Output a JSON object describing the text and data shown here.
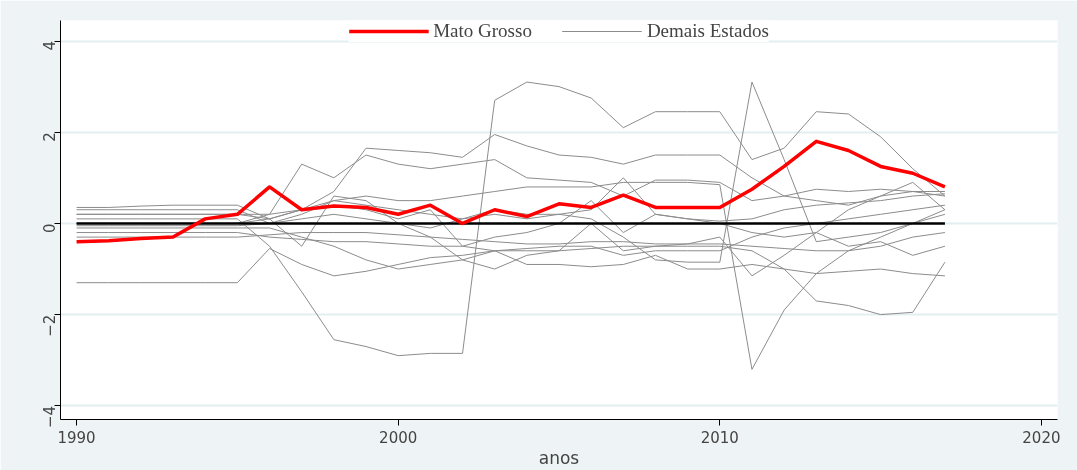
{
  "chart_data": {
    "type": "line",
    "xlabel": "anos",
    "x": [
      1990,
      1991,
      1992,
      1993,
      1994,
      1995,
      1996,
      1997,
      1998,
      1999,
      2000,
      2001,
      2002,
      2003,
      2004,
      2005,
      2006,
      2007,
      2008,
      2009,
      2010,
      2011,
      2012,
      2013,
      2014,
      2015,
      2016,
      2017
    ],
    "xlim": [
      1989.5,
      2020.5
    ],
    "xticks": [
      1990,
      2000,
      2010,
      2020
    ],
    "ylim": [
      -4.3,
      4.45
    ],
    "yticks": [
      -4,
      -2,
      0,
      2,
      4
    ],
    "grid": "y",
    "legend": "top",
    "series": [
      {
        "name": "Mato Grosso",
        "color": "#ff0000",
        "values": [
          -0.4,
          -0.38,
          -0.33,
          -0.3,
          0.1,
          0.2,
          0.8,
          0.3,
          0.38,
          0.35,
          0.2,
          0.4,
          0.0,
          0.3,
          0.15,
          0.43,
          0.35,
          0.62,
          0.35,
          0.35,
          0.35,
          0.75,
          1.25,
          1.8,
          1.6,
          1.25,
          1.1,
          0.8
        ]
      },
      {
        "color": "#000000",
        "values": [
          0,
          0,
          0,
          0,
          0,
          0,
          0,
          0,
          0,
          0,
          0,
          0,
          0,
          0,
          0,
          0,
          0,
          0,
          0,
          0,
          0,
          0,
          0,
          0,
          0,
          0,
          0,
          0
        ]
      },
      {
        "name": "Demais Estados",
        "color": "#8c8c8c",
        "values": [
          -1.3,
          -1.3,
          -1.3,
          -1.3,
          -1.3,
          -1.3,
          -0.55,
          -0.9,
          -1.15,
          -1.05,
          -0.9,
          -0.75,
          -0.7,
          -0.6,
          -0.55,
          -0.5,
          -0.5,
          -0.7,
          -0.6,
          -0.6,
          -0.6,
          -0.3,
          -0.1,
          0.0,
          0.1,
          0.2,
          0.3,
          0.4
        ]
      },
      {
        "color": "#8c8c8c",
        "values": [
          0.1,
          0.1,
          0.1,
          0.1,
          0.1,
          0.1,
          -0.5,
          -1.5,
          -2.55,
          -2.7,
          -2.9,
          -2.85,
          -2.85,
          2.7,
          3.1,
          3.0,
          2.75,
          2.1,
          2.45,
          2.45,
          2.45,
          1.4,
          1.65,
          2.45,
          2.4,
          1.9,
          1.2,
          0.6
        ]
      },
      {
        "color": "#8c8c8c",
        "values": [
          0.3,
          0.3,
          0.3,
          0.3,
          0.3,
          0.3,
          0.0,
          0.2,
          0.5,
          0.4,
          0.3,
          0.2,
          0.1,
          0.3,
          0.2,
          0.2,
          0.1,
          -0.3,
          -0.8,
          -0.85,
          -0.85,
          3.1,
          1.4,
          -0.4,
          -0.3,
          -0.2,
          0.0,
          0.2
        ]
      },
      {
        "color": "#8c8c8c",
        "values": [
          0.2,
          0.2,
          0.2,
          0.2,
          0.2,
          0.2,
          0.1,
          0.3,
          0.5,
          0.6,
          0.5,
          0.5,
          0.6,
          0.7,
          0.8,
          0.8,
          0.8,
          0.9,
          0.9,
          0.9,
          0.85,
          -3.2,
          -1.9,
          -1.1,
          -0.6,
          -0.3,
          0.0,
          0.3
        ]
      },
      {
        "color": "#8c8c8c",
        "values": [
          0.35,
          0.35,
          0.38,
          0.4,
          0.4,
          0.4,
          0.1,
          0.3,
          0.7,
          1.65,
          1.6,
          1.55,
          1.45,
          1.95,
          1.7,
          1.5,
          1.45,
          1.3,
          1.5,
          1.5,
          1.5,
          1.0,
          0.6,
          0.5,
          0.4,
          0.6,
          0.7,
          0.6
        ]
      },
      {
        "color": "#8c8c8c",
        "values": [
          0.0,
          0.0,
          0.0,
          0.0,
          0.0,
          0.0,
          0.2,
          1.3,
          1.0,
          1.5,
          1.3,
          1.2,
          1.3,
          1.4,
          1.0,
          0.95,
          0.9,
          0.6,
          0.95,
          0.95,
          0.9,
          0.5,
          0.6,
          0.75,
          0.7,
          0.75,
          0.7,
          0.7
        ]
      },
      {
        "color": "#8c8c8c",
        "values": [
          -0.2,
          -0.2,
          -0.2,
          -0.2,
          -0.2,
          -0.2,
          -0.3,
          -0.35,
          -0.4,
          -0.4,
          -0.45,
          -0.5,
          -0.5,
          -0.6,
          -0.6,
          -0.6,
          -0.55,
          -0.5,
          -0.5,
          -0.5,
          -0.5,
          -0.6,
          -1.0,
          -1.7,
          -1.8,
          -2.0,
          -1.95,
          -0.85
        ]
      },
      {
        "color": "#8c8c8c",
        "values": [
          -0.1,
          -0.1,
          -0.1,
          -0.1,
          -0.1,
          -0.1,
          -0.1,
          -0.3,
          -0.5,
          -0.8,
          -1.0,
          -0.9,
          -0.8,
          -0.6,
          -0.9,
          -0.9,
          -0.95,
          -0.9,
          -0.7,
          -1.0,
          -1.0,
          -0.9,
          -1.0,
          -1.1,
          -1.05,
          -1.0,
          -1.1,
          -1.15
        ]
      },
      {
        "color": "#8c8c8c",
        "values": [
          0.0,
          0.0,
          0.0,
          0.0,
          0.0,
          0.0,
          0.1,
          -0.5,
          0.6,
          0.5,
          0.0,
          -0.3,
          -0.8,
          -1.0,
          -0.7,
          -0.6,
          0.0,
          -0.6,
          -0.5,
          -0.45,
          -0.3,
          -1.15,
          -0.7,
          -0.2,
          0.3,
          0.6,
          0.9,
          0.3
        ]
      },
      {
        "color": "#8c8c8c",
        "values": [
          0.2,
          0.2,
          0.2,
          0.2,
          0.2,
          0.2,
          0.2,
          0.3,
          0.4,
          0.3,
          0.1,
          0.3,
          -0.5,
          -0.3,
          -0.2,
          0.0,
          0.5,
          -0.2,
          0.2,
          0.1,
          0.05,
          0.1,
          0.3,
          0.4,
          0.45,
          0.5,
          0.6,
          0.65
        ]
      },
      {
        "color": "#8c8c8c",
        "values": [
          -0.05,
          -0.05,
          -0.05,
          -0.05,
          -0.05,
          -0.05,
          0.0,
          0.1,
          0.2,
          0.1,
          0.0,
          -0.1,
          0.1,
          0.2,
          0.1,
          0.2,
          0.3,
          1.0,
          0.2,
          0.1,
          0.0,
          -0.2,
          -0.3,
          -0.2,
          -0.5,
          -0.4,
          -0.7,
          -0.5
        ]
      },
      {
        "color": "#8c8c8c",
        "values": [
          -0.3,
          -0.3,
          -0.3,
          -0.3,
          -0.3,
          -0.3,
          -0.25,
          -0.2,
          -0.2,
          -0.2,
          -0.25,
          -0.3,
          -0.35,
          -0.4,
          -0.45,
          -0.45,
          -0.4,
          -0.4,
          -0.45,
          -0.45,
          -0.45,
          -0.5,
          -0.55,
          -0.6,
          -0.6,
          -0.5,
          -0.3,
          -0.2
        ]
      }
    ]
  }
}
